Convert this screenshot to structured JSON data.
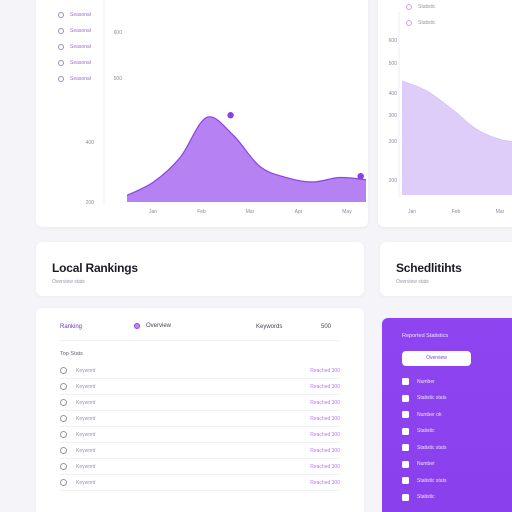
{
  "main_chart": {
    "legend": [
      {
        "label": "Seasonal"
      },
      {
        "label": "Seasonal"
      },
      {
        "label": "Seasonal"
      },
      {
        "label": "Seasonal"
      },
      {
        "label": "Seasonal"
      }
    ],
    "y_ticks": [
      "600",
      "500",
      "400",
      "300",
      "200"
    ],
    "x_ticks": [
      "Jan",
      "Feb",
      "Mar",
      "Apr",
      "May"
    ],
    "color": "#9a5ae8"
  },
  "side_chart": {
    "legend": [
      {
        "label": "Statistic"
      },
      {
        "label": "Statistic"
      }
    ],
    "y_ticks": [
      "600",
      "500",
      "400",
      "300",
      "200"
    ],
    "x_ticks": [
      "Jan",
      "Feb",
      "Mar"
    ],
    "color": "#e2d3fa"
  },
  "chart_data": [
    {
      "type": "area",
      "title": "",
      "xlabel": "",
      "ylabel": "",
      "categories": [
        "Jan",
        "Feb",
        "Mar",
        "Apr",
        "May"
      ],
      "x": [
        0,
        0.5,
        1,
        1.5,
        2,
        2.5,
        3,
        3.5,
        4,
        4.5
      ],
      "series": [
        {
          "values": [
            215,
            245,
            300,
            390,
            350,
            280,
            255,
            245,
            255,
            250
          ]
        }
      ],
      "highlight_points": [
        [
          1.95,
          395
        ],
        [
          4.4,
          258
        ]
      ],
      "ylim": [
        200,
        600
      ],
      "grid": false
    },
    {
      "type": "area",
      "title": "",
      "xlabel": "",
      "ylabel": "",
      "categories": [
        "Jan",
        "Feb",
        "Mar"
      ],
      "x": [
        0,
        0.5,
        1,
        1.5,
        2,
        2.5
      ],
      "series": [
        {
          "values": [
            480,
            455,
            410,
            360,
            335,
            330
          ]
        }
      ],
      "ylim": [
        200,
        600
      ],
      "grid": false
    }
  ],
  "local_rankings": {
    "title": "Local Rankings",
    "subtitle": "Overview stats"
  },
  "statistics": {
    "title": "Schedlitihts",
    "subtitle": "Overview stats"
  },
  "rankings_table": {
    "headers": {
      "rankings": "Ranking",
      "selected": "Overview",
      "keywords": "Keywords",
      "count": "500"
    },
    "subheading": "Top Stats",
    "rows": [
      {
        "name": "Keyword",
        "value": "Reached 300"
      },
      {
        "name": "Keyword",
        "value": "Reached 300"
      },
      {
        "name": "Keyword",
        "value": "Reached 300"
      },
      {
        "name": "Keyword",
        "value": "Reached 300"
      },
      {
        "name": "Keyword",
        "value": "Reached 300"
      },
      {
        "name": "Keyword",
        "value": "Reached 300"
      },
      {
        "name": "Keyword",
        "value": "Reached 300"
      },
      {
        "name": "Keyword",
        "value": "Reached 300"
      }
    ]
  },
  "stats_panel": {
    "title": "Reported Statistics",
    "button_label": "Overview",
    "items": [
      {
        "label": "Number"
      },
      {
        "label": "Statistic stats"
      },
      {
        "label": "Number ok"
      },
      {
        "label": "Statistic"
      },
      {
        "label": "Statistic stats"
      },
      {
        "label": "Number"
      },
      {
        "label": "Statistic stats"
      },
      {
        "label": "Statistic"
      }
    ],
    "color": "#8c42ee"
  }
}
